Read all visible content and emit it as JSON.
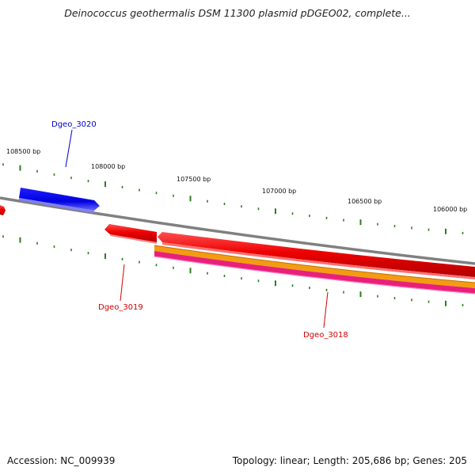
{
  "title": "Deinococcus geothermalis DSM 11300 plasmid pDGEO02, complete...",
  "footer": {
    "accession": "Accession: NC_009939",
    "summary": "Topology: linear; Length: 205,686 bp; Genes: 205"
  },
  "ruler": {
    "labels": [
      "108500 bp",
      "108000 bp",
      "107500 bp",
      "107000 bp",
      "106500 bp",
      "106000 bp"
    ]
  },
  "genes": {
    "dgeo_3020": {
      "name": "Dgeo_3020",
      "color": "#0000cc",
      "strand": "forward"
    },
    "dgeo_3019": {
      "name": "Dgeo_3019",
      "color": "#cc0000",
      "strand": "reverse"
    },
    "dgeo_3018": {
      "name": "Dgeo_3018",
      "color": "#cc0000",
      "strand": "reverse"
    }
  },
  "colors": {
    "backbone": "#808080",
    "tick": "#2e7d1e",
    "forward_gene": "#0000ff",
    "reverse_gene": "#ee0000",
    "orange_track": "#f39c12",
    "magenta_track": "#e8207a"
  }
}
